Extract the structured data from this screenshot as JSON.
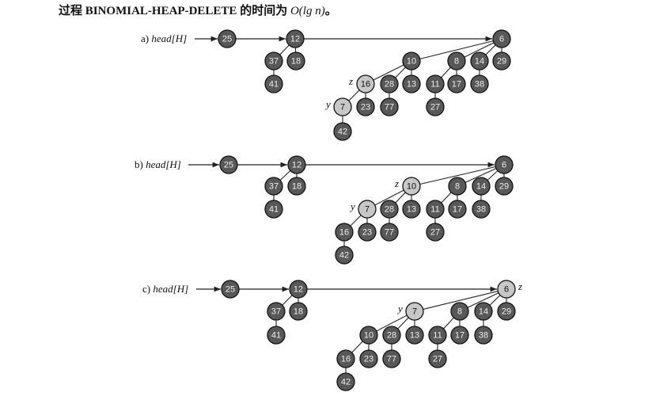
{
  "caption": {
    "prefix": "过程 BINOMIAL-HEAP-DELETE 的时间为 ",
    "math": "O(lg n)",
    "suffix": "。"
  },
  "panels": [
    {
      "id": "a",
      "label_prefix": "a) ",
      "label_var": "head[H]",
      "nodes": [
        {
          "id": "n25",
          "key": "25",
          "shade": "dark"
        },
        {
          "id": "n12",
          "key": "12",
          "shade": "dark"
        },
        {
          "id": "n37",
          "key": "37",
          "shade": "dark"
        },
        {
          "id": "n18",
          "key": "18",
          "shade": "dark"
        },
        {
          "id": "n41",
          "key": "41",
          "shade": "dark"
        },
        {
          "id": "n6",
          "key": "6",
          "shade": "dark"
        },
        {
          "id": "n10",
          "key": "10",
          "shade": "dark"
        },
        {
          "id": "n8",
          "key": "8",
          "shade": "dark"
        },
        {
          "id": "n14",
          "key": "14",
          "shade": "dark"
        },
        {
          "id": "n29",
          "key": "29",
          "shade": "dark"
        },
        {
          "id": "n16",
          "key": "16",
          "shade": "light",
          "marker": "z"
        },
        {
          "id": "n28",
          "key": "28",
          "shade": "dark"
        },
        {
          "id": "n13",
          "key": "13",
          "shade": "dark"
        },
        {
          "id": "n11",
          "key": "11",
          "shade": "dark"
        },
        {
          "id": "n17",
          "key": "17",
          "shade": "dark"
        },
        {
          "id": "n38",
          "key": "38",
          "shade": "dark"
        },
        {
          "id": "n7",
          "key": "7",
          "shade": "light",
          "marker": "y"
        },
        {
          "id": "n23",
          "key": "23",
          "shade": "dark"
        },
        {
          "id": "n77",
          "key": "77",
          "shade": "dark"
        },
        {
          "id": "n27",
          "key": "27",
          "shade": "dark"
        },
        {
          "id": "n42",
          "key": "42",
          "shade": "dark"
        }
      ],
      "edges": [
        [
          "n12",
          "n37"
        ],
        [
          "n12",
          "n18"
        ],
        [
          "n37",
          "n41"
        ],
        [
          "n6",
          "n10"
        ],
        [
          "n6",
          "n8"
        ],
        [
          "n6",
          "n14"
        ],
        [
          "n6",
          "n29"
        ],
        [
          "n10",
          "n16"
        ],
        [
          "n10",
          "n28"
        ],
        [
          "n10",
          "n13"
        ],
        [
          "n8",
          "n11"
        ],
        [
          "n8",
          "n17"
        ],
        [
          "n14",
          "n38"
        ],
        [
          "n16",
          "n7"
        ],
        [
          "n16",
          "n23"
        ],
        [
          "n28",
          "n77"
        ],
        [
          "n11",
          "n27"
        ],
        [
          "n7",
          "n42"
        ]
      ],
      "root_list": [
        "n25",
        "n12",
        "n6"
      ]
    },
    {
      "id": "b",
      "label_prefix": "b) ",
      "label_var": "head[H]",
      "nodes": [
        {
          "id": "n25",
          "key": "25",
          "shade": "dark"
        },
        {
          "id": "n12",
          "key": "12",
          "shade": "dark"
        },
        {
          "id": "n37",
          "key": "37",
          "shade": "dark"
        },
        {
          "id": "n18",
          "key": "18",
          "shade": "dark"
        },
        {
          "id": "n41",
          "key": "41",
          "shade": "dark"
        },
        {
          "id": "n6",
          "key": "6",
          "shade": "dark"
        },
        {
          "id": "n10",
          "key": "10",
          "shade": "light",
          "marker": "z"
        },
        {
          "id": "n8",
          "key": "8",
          "shade": "dark"
        },
        {
          "id": "n14",
          "key": "14",
          "shade": "dark"
        },
        {
          "id": "n29",
          "key": "29",
          "shade": "dark"
        },
        {
          "id": "n7",
          "key": "7",
          "shade": "light",
          "marker": "y"
        },
        {
          "id": "n28",
          "key": "28",
          "shade": "dark"
        },
        {
          "id": "n13",
          "key": "13",
          "shade": "dark"
        },
        {
          "id": "n11",
          "key": "11",
          "shade": "dark"
        },
        {
          "id": "n17",
          "key": "17",
          "shade": "dark"
        },
        {
          "id": "n38",
          "key": "38",
          "shade": "dark"
        },
        {
          "id": "n16",
          "key": "16",
          "shade": "dark"
        },
        {
          "id": "n23",
          "key": "23",
          "shade": "dark"
        },
        {
          "id": "n77",
          "key": "77",
          "shade": "dark"
        },
        {
          "id": "n27",
          "key": "27",
          "shade": "dark"
        },
        {
          "id": "n42",
          "key": "42",
          "shade": "dark"
        }
      ],
      "edges": [
        [
          "n12",
          "n37"
        ],
        [
          "n12",
          "n18"
        ],
        [
          "n37",
          "n41"
        ],
        [
          "n6",
          "n10"
        ],
        [
          "n6",
          "n8"
        ],
        [
          "n6",
          "n14"
        ],
        [
          "n6",
          "n29"
        ],
        [
          "n10",
          "n7"
        ],
        [
          "n10",
          "n28"
        ],
        [
          "n10",
          "n13"
        ],
        [
          "n8",
          "n11"
        ],
        [
          "n8",
          "n17"
        ],
        [
          "n14",
          "n38"
        ],
        [
          "n7",
          "n16"
        ],
        [
          "n7",
          "n23"
        ],
        [
          "n28",
          "n77"
        ],
        [
          "n11",
          "n27"
        ],
        [
          "n16",
          "n42"
        ]
      ],
      "root_list": [
        "n25",
        "n12",
        "n6"
      ]
    },
    {
      "id": "c",
      "label_prefix": "c) ",
      "label_var": "head[H]",
      "nodes": [
        {
          "id": "n25",
          "key": "25",
          "shade": "dark"
        },
        {
          "id": "n12",
          "key": "12",
          "shade": "dark"
        },
        {
          "id": "n37",
          "key": "37",
          "shade": "dark"
        },
        {
          "id": "n18",
          "key": "18",
          "shade": "dark"
        },
        {
          "id": "n41",
          "key": "41",
          "shade": "dark"
        },
        {
          "id": "n6",
          "key": "6",
          "shade": "light",
          "marker": "z"
        },
        {
          "id": "n7",
          "key": "7",
          "shade": "light",
          "marker": "y"
        },
        {
          "id": "n8",
          "key": "8",
          "shade": "dark"
        },
        {
          "id": "n14",
          "key": "14",
          "shade": "dark"
        },
        {
          "id": "n29",
          "key": "29",
          "shade": "dark"
        },
        {
          "id": "n10",
          "key": "10",
          "shade": "dark"
        },
        {
          "id": "n28",
          "key": "28",
          "shade": "dark"
        },
        {
          "id": "n13",
          "key": "13",
          "shade": "dark"
        },
        {
          "id": "n11",
          "key": "11",
          "shade": "dark"
        },
        {
          "id": "n17",
          "key": "17",
          "shade": "dark"
        },
        {
          "id": "n38",
          "key": "38",
          "shade": "dark"
        },
        {
          "id": "n16",
          "key": "16",
          "shade": "dark"
        },
        {
          "id": "n23",
          "key": "23",
          "shade": "dark"
        },
        {
          "id": "n77",
          "key": "77",
          "shade": "dark"
        },
        {
          "id": "n27",
          "key": "27",
          "shade": "dark"
        },
        {
          "id": "n42",
          "key": "42",
          "shade": "dark"
        }
      ],
      "edges": [
        [
          "n12",
          "n37"
        ],
        [
          "n12",
          "n18"
        ],
        [
          "n37",
          "n41"
        ],
        [
          "n6",
          "n7"
        ],
        [
          "n6",
          "n8"
        ],
        [
          "n6",
          "n14"
        ],
        [
          "n6",
          "n29"
        ],
        [
          "n7",
          "n10"
        ],
        [
          "n7",
          "n28"
        ],
        [
          "n7",
          "n13"
        ],
        [
          "n8",
          "n11"
        ],
        [
          "n8",
          "n17"
        ],
        [
          "n14",
          "n38"
        ],
        [
          "n10",
          "n16"
        ],
        [
          "n10",
          "n23"
        ],
        [
          "n28",
          "n77"
        ],
        [
          "n11",
          "n27"
        ],
        [
          "n16",
          "n42"
        ]
      ],
      "root_list": [
        "n25",
        "n12",
        "n6"
      ]
    }
  ]
}
